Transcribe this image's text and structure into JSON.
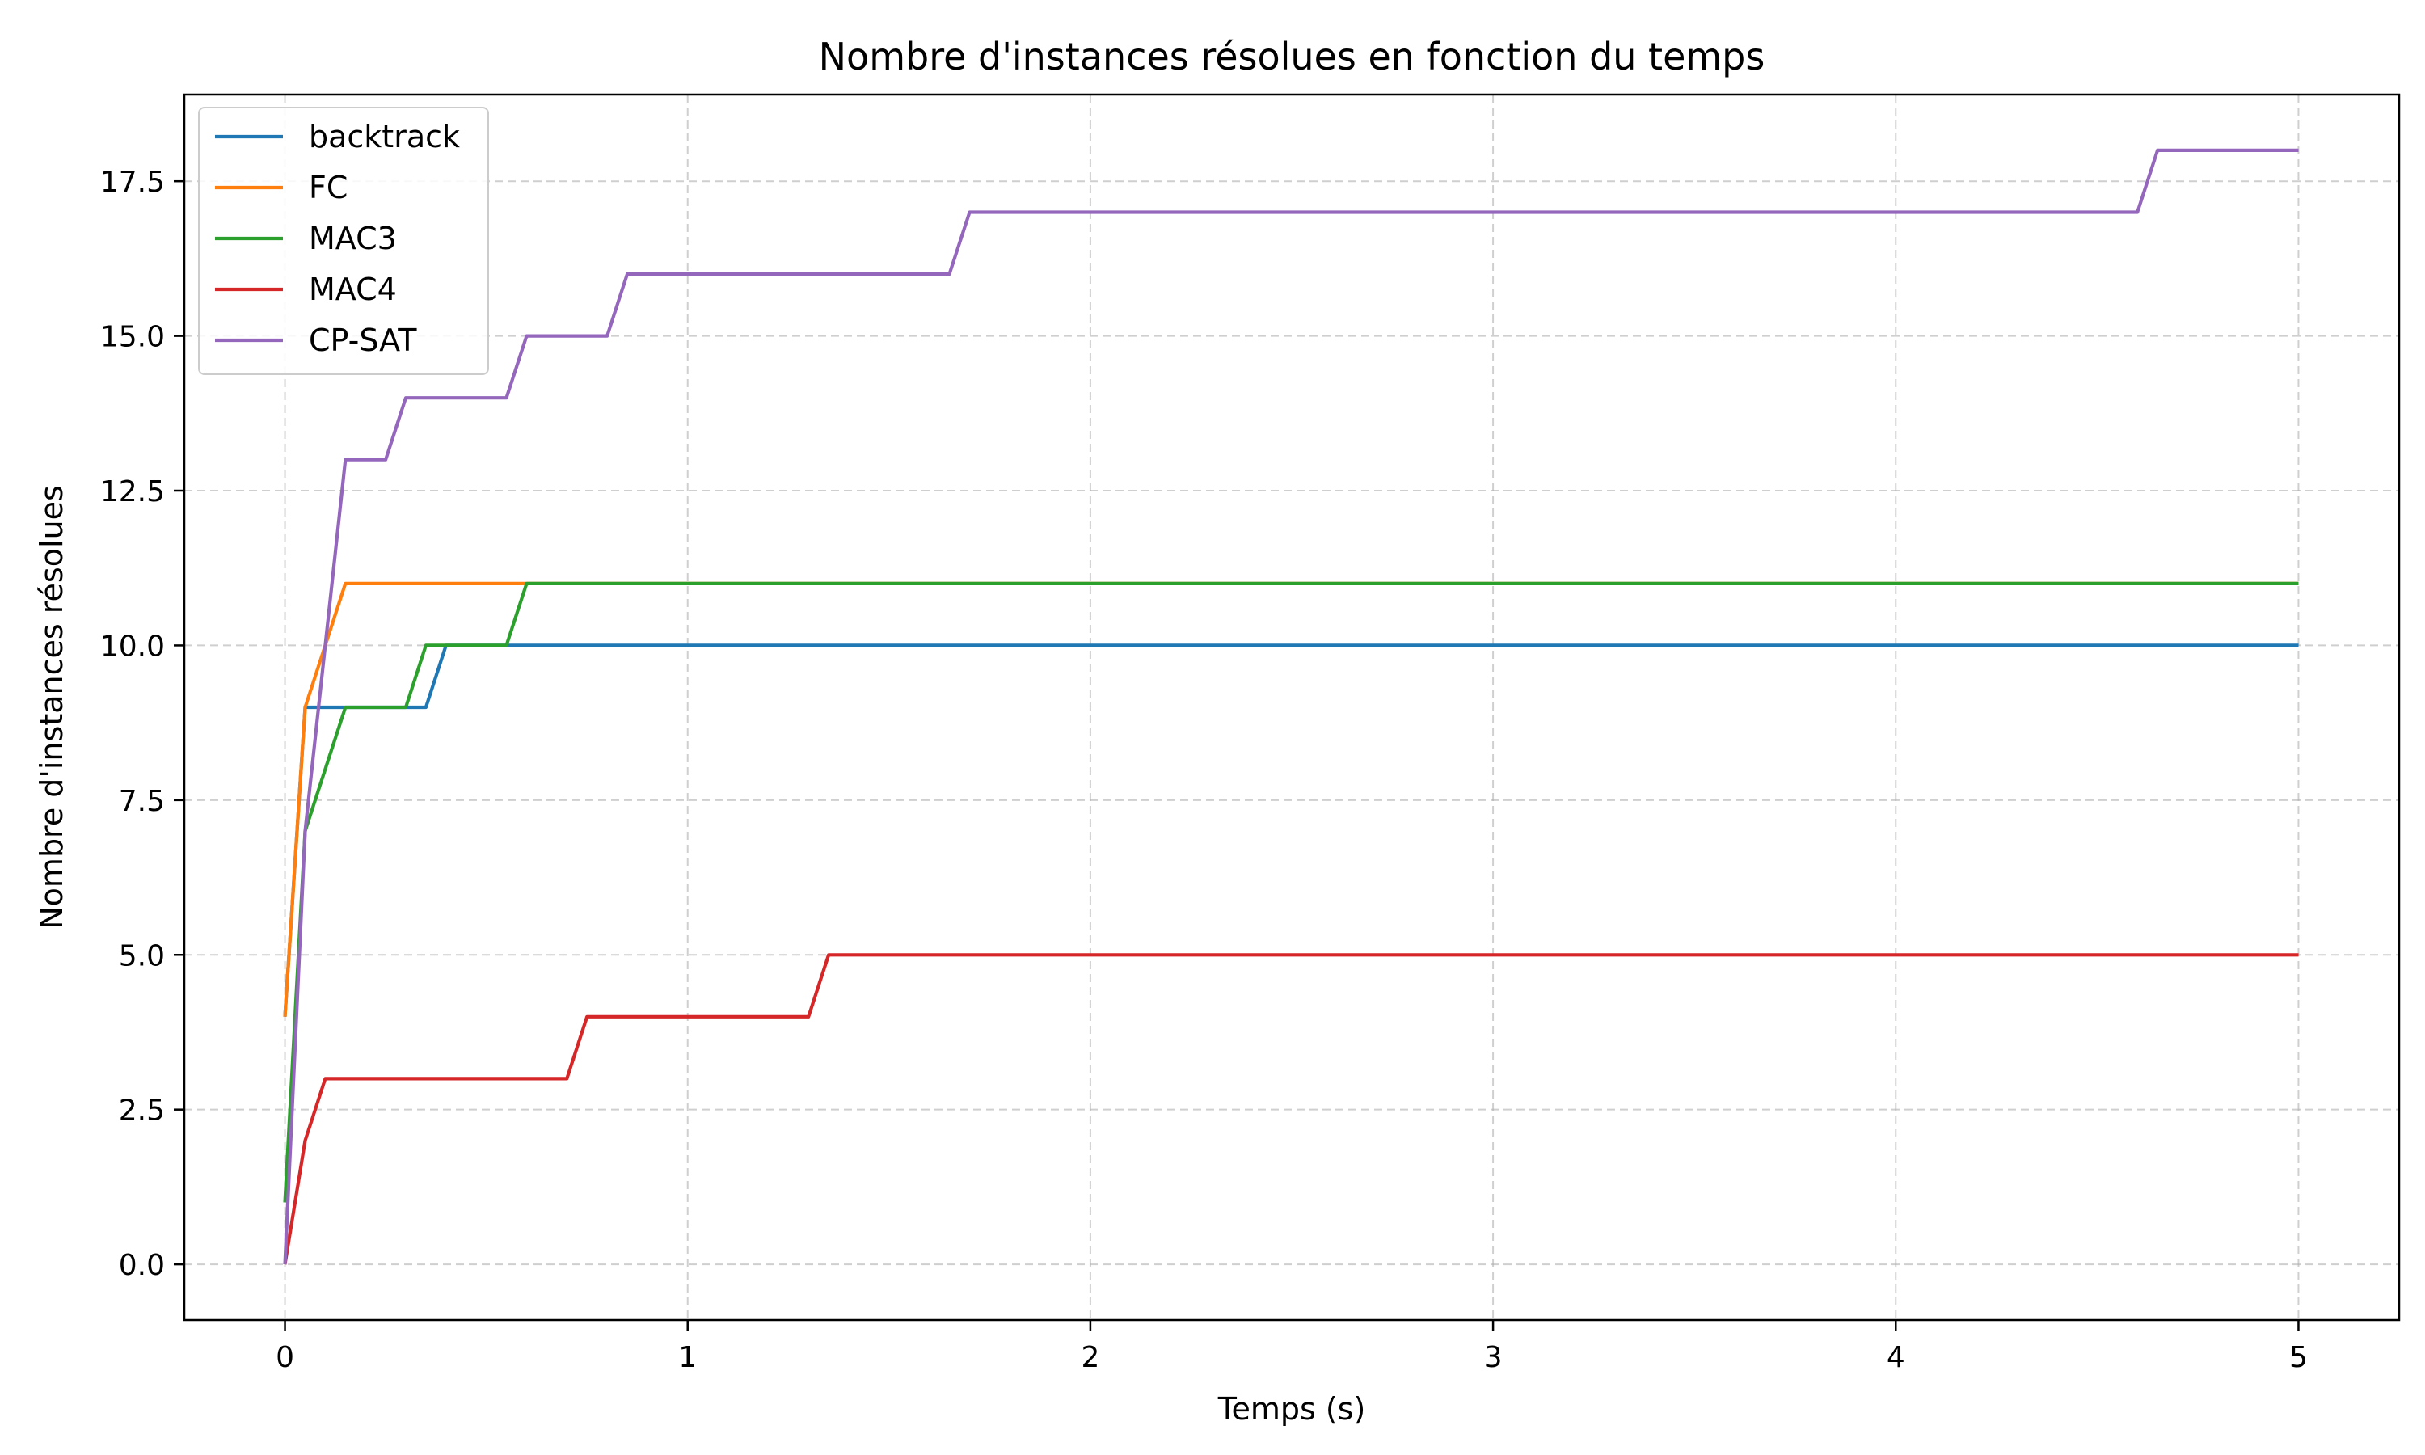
{
  "chart_data": {
    "type": "line",
    "title": "Nombre d'instances résolues en fonction du temps",
    "xlabel": "Temps (s)",
    "ylabel": "Nombre d'instances résolues",
    "xlim": [
      -0.25,
      5.25
    ],
    "ylim": [
      -0.9,
      18.9
    ],
    "xticks": [
      0,
      1,
      2,
      3,
      4,
      5
    ],
    "xtick_labels": [
      "0",
      "1",
      "2",
      "3",
      "4",
      "5"
    ],
    "yticks": [
      0,
      2.5,
      5,
      7.5,
      10,
      12.5,
      15,
      17.5
    ],
    "ytick_labels": [
      "0.0",
      "2.5",
      "5.0",
      "7.5",
      "10.0",
      "12.5",
      "15.0",
      "17.5"
    ],
    "grid": true,
    "legend_position": "top-left",
    "series": [
      {
        "name": "backtrack",
        "color": "#1f77b4",
        "points": [
          [
            0,
            4
          ],
          [
            0.05,
            9
          ],
          [
            0.35,
            9
          ],
          [
            0.4,
            10
          ],
          [
            5,
            10
          ]
        ]
      },
      {
        "name": "FC",
        "color": "#ff7f0e",
        "points": [
          [
            0,
            4
          ],
          [
            0.05,
            9
          ],
          [
            0.15,
            11
          ],
          [
            0.6,
            11
          ],
          [
            5,
            11
          ]
        ]
      },
      {
        "name": "MAC3",
        "color": "#2ca02c",
        "points": [
          [
            0,
            1
          ],
          [
            0.05,
            7
          ],
          [
            0.15,
            9
          ],
          [
            0.3,
            9
          ],
          [
            0.35,
            10
          ],
          [
            0.55,
            10
          ],
          [
            0.6,
            11
          ],
          [
            5,
            11
          ]
        ]
      },
      {
        "name": "MAC4",
        "color": "#d62728",
        "points": [
          [
            0,
            0
          ],
          [
            0.05,
            2
          ],
          [
            0.1,
            3
          ],
          [
            0.7,
            3
          ],
          [
            0.75,
            4
          ],
          [
            1.3,
            4
          ],
          [
            1.35,
            5
          ],
          [
            5,
            5
          ]
        ]
      },
      {
        "name": "CP-SAT",
        "color": "#9467bd",
        "points": [
          [
            0,
            0
          ],
          [
            0.05,
            7
          ],
          [
            0.15,
            13
          ],
          [
            0.25,
            13
          ],
          [
            0.3,
            14
          ],
          [
            0.55,
            14
          ],
          [
            0.6,
            15
          ],
          [
            0.8,
            15
          ],
          [
            0.85,
            16
          ],
          [
            1.65,
            16
          ],
          [
            1.7,
            17
          ],
          [
            4.6,
            17
          ],
          [
            4.65,
            18
          ],
          [
            5,
            18
          ]
        ]
      }
    ]
  }
}
